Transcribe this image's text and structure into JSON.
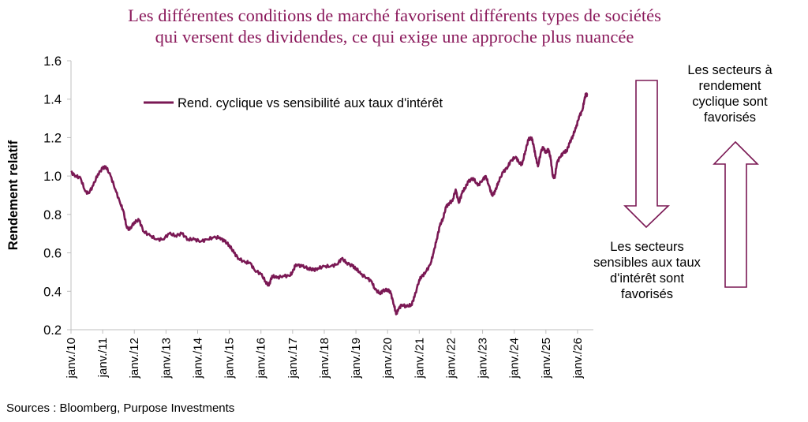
{
  "title": {
    "line1": "Les différentes conditions de marché favorisent différents types de sociétés",
    "line2": "qui versent des dividendes, ce qui exige une approche plus nuancée"
  },
  "source": "Sources : Bloomberg, Purpose Investments",
  "annotations": {
    "top": [
      "Les secteurs à",
      "rendement",
      "cyclique sont",
      "favorisés"
    ],
    "bottom": [
      "Les secteurs",
      "sensibles aux taux",
      "d'intérêt sont",
      "favorisés"
    ]
  },
  "colors": {
    "series": "#7a1854",
    "arrow": "#7a1854",
    "title": "#8b1a5c",
    "axis": "#bfbfbf"
  },
  "chart_data": {
    "type": "line",
    "ylabel": "Rendement relatif",
    "ylim": [
      0.2,
      1.6
    ],
    "yticks": [
      "0.2",
      "0.4",
      "0.6",
      "0.8",
      "1.0",
      "1.2",
      "1.4",
      "1.6"
    ],
    "xlim": [
      2010.0,
      2026.5
    ],
    "xticks": [
      {
        "x": 2010,
        "label": "janv./10"
      },
      {
        "x": 2011,
        "label": "janv./11"
      },
      {
        "x": 2012,
        "label": "janv./12"
      },
      {
        "x": 2013,
        "label": "janv./13"
      },
      {
        "x": 2014,
        "label": "janv./14"
      },
      {
        "x": 2015,
        "label": "janv./15"
      },
      {
        "x": 2016,
        "label": "janv./16"
      },
      {
        "x": 2017,
        "label": "janv./17"
      },
      {
        "x": 2018,
        "label": "janv./18"
      },
      {
        "x": 2019,
        "label": "janv./19"
      },
      {
        "x": 2020,
        "label": "janv./20"
      },
      {
        "x": 2021,
        "label": "janv./21"
      },
      {
        "x": 2022,
        "label": "janv./22"
      },
      {
        "x": 2023,
        "label": "janv./23"
      },
      {
        "x": 2024,
        "label": "janv./24"
      },
      {
        "x": 2025,
        "label": "janv./25"
      },
      {
        "x": 2026,
        "label": "janv./26"
      }
    ],
    "legend": "top-left",
    "series": [
      {
        "name": "Rend. cyclique vs sensibilité aux taux d'intérêt",
        "points": [
          [
            2010.0,
            1.02
          ],
          [
            2010.15,
            1.0
          ],
          [
            2010.3,
            0.99
          ],
          [
            2010.45,
            0.92
          ],
          [
            2010.55,
            0.91
          ],
          [
            2010.7,
            0.95
          ],
          [
            2010.85,
            1.01
          ],
          [
            2011.0,
            1.04
          ],
          [
            2011.1,
            1.05
          ],
          [
            2011.25,
            1.0
          ],
          [
            2011.4,
            0.93
          ],
          [
            2011.55,
            0.86
          ],
          [
            2011.65,
            0.82
          ],
          [
            2011.75,
            0.74
          ],
          [
            2011.85,
            0.72
          ],
          [
            2012.0,
            0.76
          ],
          [
            2012.15,
            0.77
          ],
          [
            2012.3,
            0.71
          ],
          [
            2012.5,
            0.69
          ],
          [
            2012.7,
            0.67
          ],
          [
            2012.9,
            0.67
          ],
          [
            2013.1,
            0.7
          ],
          [
            2013.3,
            0.69
          ],
          [
            2013.5,
            0.7
          ],
          [
            2013.7,
            0.67
          ],
          [
            2013.9,
            0.67
          ],
          [
            2014.1,
            0.66
          ],
          [
            2014.3,
            0.67
          ],
          [
            2014.5,
            0.68
          ],
          [
            2014.7,
            0.68
          ],
          [
            2014.85,
            0.66
          ],
          [
            2015.0,
            0.64
          ],
          [
            2015.15,
            0.6
          ],
          [
            2015.3,
            0.57
          ],
          [
            2015.5,
            0.55
          ],
          [
            2015.65,
            0.55
          ],
          [
            2015.8,
            0.51
          ],
          [
            2016.0,
            0.49
          ],
          [
            2016.15,
            0.45
          ],
          [
            2016.25,
            0.43
          ],
          [
            2016.35,
            0.48
          ],
          [
            2016.5,
            0.47
          ],
          [
            2016.7,
            0.48
          ],
          [
            2016.9,
            0.48
          ],
          [
            2017.0,
            0.5
          ],
          [
            2017.1,
            0.54
          ],
          [
            2017.3,
            0.53
          ],
          [
            2017.5,
            0.52
          ],
          [
            2017.65,
            0.51
          ],
          [
            2017.8,
            0.52
          ],
          [
            2018.0,
            0.53
          ],
          [
            2018.2,
            0.53
          ],
          [
            2018.4,
            0.54
          ],
          [
            2018.55,
            0.57
          ],
          [
            2018.7,
            0.55
          ],
          [
            2018.9,
            0.53
          ],
          [
            2019.0,
            0.52
          ],
          [
            2019.15,
            0.49
          ],
          [
            2019.35,
            0.47
          ],
          [
            2019.5,
            0.45
          ],
          [
            2019.6,
            0.41
          ],
          [
            2019.75,
            0.39
          ],
          [
            2019.85,
            0.4
          ],
          [
            2020.0,
            0.41
          ],
          [
            2020.1,
            0.39
          ],
          [
            2020.2,
            0.33
          ],
          [
            2020.27,
            0.28
          ],
          [
            2020.35,
            0.31
          ],
          [
            2020.45,
            0.33
          ],
          [
            2020.6,
            0.32
          ],
          [
            2020.75,
            0.33
          ],
          [
            2020.85,
            0.37
          ],
          [
            2021.0,
            0.46
          ],
          [
            2021.1,
            0.48
          ],
          [
            2021.2,
            0.5
          ],
          [
            2021.35,
            0.54
          ],
          [
            2021.45,
            0.6
          ],
          [
            2021.55,
            0.67
          ],
          [
            2021.65,
            0.74
          ],
          [
            2021.75,
            0.78
          ],
          [
            2021.85,
            0.84
          ],
          [
            2021.95,
            0.86
          ],
          [
            2022.05,
            0.87
          ],
          [
            2022.15,
            0.93
          ],
          [
            2022.25,
            0.86
          ],
          [
            2022.35,
            0.91
          ],
          [
            2022.45,
            0.94
          ],
          [
            2022.55,
            0.97
          ],
          [
            2022.7,
            0.99
          ],
          [
            2022.85,
            0.95
          ],
          [
            2023.0,
            0.98
          ],
          [
            2023.1,
            1.0
          ],
          [
            2023.2,
            0.95
          ],
          [
            2023.3,
            0.9
          ],
          [
            2023.4,
            0.92
          ],
          [
            2023.5,
            0.97
          ],
          [
            2023.65,
            1.02
          ],
          [
            2023.8,
            1.05
          ],
          [
            2023.9,
            1.08
          ],
          [
            2024.05,
            1.1
          ],
          [
            2024.15,
            1.07
          ],
          [
            2024.25,
            1.06
          ],
          [
            2024.35,
            1.13
          ],
          [
            2024.45,
            1.19
          ],
          [
            2024.55,
            1.2
          ],
          [
            2024.62,
            1.15
          ],
          [
            2024.68,
            1.1
          ],
          [
            2024.75,
            1.05
          ],
          [
            2024.85,
            1.13
          ],
          [
            2024.92,
            1.15
          ],
          [
            2025.0,
            1.12
          ],
          [
            2025.08,
            1.14
          ],
          [
            2025.15,
            1.09
          ],
          [
            2025.22,
            1.0
          ],
          [
            2025.28,
            0.99
          ],
          [
            2025.35,
            1.07
          ],
          [
            2025.45,
            1.1
          ],
          [
            2025.55,
            1.12
          ],
          [
            2025.65,
            1.13
          ],
          [
            2025.75,
            1.17
          ],
          [
            2025.85,
            1.21
          ],
          [
            2025.95,
            1.25
          ],
          [
            2026.05,
            1.31
          ],
          [
            2026.15,
            1.34
          ],
          [
            2026.22,
            1.4
          ],
          [
            2026.27,
            1.43
          ],
          [
            2026.3,
            1.42
          ]
        ]
      }
    ]
  }
}
